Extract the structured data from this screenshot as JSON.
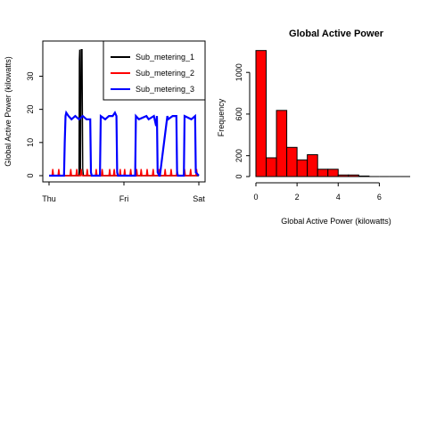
{
  "chart_data": [
    {
      "type": "line",
      "title": "",
      "xlabel": "",
      "ylabel": "Global Active Power (kilowatts)",
      "x_ticks": [
        "Thu",
        "Fri",
        "Sat"
      ],
      "x_range_days": [
        0,
        2
      ],
      "ylim": [
        0,
        39
      ],
      "y_ticks": [
        0,
        10,
        20,
        30
      ],
      "legend": "top-right",
      "series": [
        {
          "name": "Sub_metering_1",
          "color": "#000000",
          "x": [
            0,
            0.4,
            0.405,
            0.41,
            0.415,
            0.42,
            0.43,
            0.44,
            0.45,
            0.46,
            0.47,
            2
          ],
          "y": [
            0,
            0,
            35,
            38,
            2,
            0,
            38,
            38,
            2,
            0,
            0,
            0
          ]
        },
        {
          "name": "Sub_metering_2",
          "color": "#ff0000",
          "x": [
            0.04,
            0.05,
            0.06,
            0.12,
            0.13,
            0.14,
            0.28,
            0.29,
            0.3,
            0.36,
            0.37,
            0.38,
            0.42,
            0.43,
            0.44,
            0.5,
            0.51,
            0.52,
            0.62,
            0.63,
            0.64,
            0.7,
            0.71,
            0.72,
            0.8,
            0.81,
            0.82,
            0.86,
            0.87,
            0.88,
            0.94,
            0.95,
            0.96,
            1.0,
            1.01,
            1.02,
            1.08,
            1.09,
            1.1,
            1.16,
            1.17,
            1.18,
            1.22,
            1.23,
            1.24,
            1.3,
            1.31,
            1.32,
            1.38,
            1.39,
            1.4,
            1.46,
            1.47,
            1.48,
            1.54,
            1.55,
            1.56,
            1.62,
            1.63,
            1.64,
            1.7,
            1.71,
            1.72,
            1.8,
            1.81,
            1.82,
            1.88,
            1.89,
            1.9,
            1.96,
            1.97,
            1.98
          ],
          "y": [
            0,
            2,
            0,
            0,
            2,
            0,
            0,
            2,
            0,
            0,
            2,
            0,
            0,
            2,
            0,
            0,
            2,
            0,
            0,
            2,
            0,
            0,
            2,
            0,
            0,
            2,
            0,
            0,
            2,
            0,
            0,
            2,
            0,
            0,
            2,
            0,
            0,
            2,
            0,
            0,
            2,
            0,
            0,
            2,
            0,
            0,
            2,
            0,
            0,
            2,
            0,
            0,
            2,
            0,
            0,
            2,
            0,
            0,
            2,
            0,
            0,
            2,
            0,
            0,
            2,
            0,
            0,
            2,
            0,
            0,
            2,
            0
          ]
        },
        {
          "name": "Sub_metering_3",
          "color": "#0000ff",
          "x": [
            0,
            0.2,
            0.21,
            0.22,
            0.23,
            0.26,
            0.3,
            0.35,
            0.4,
            0.45,
            0.5,
            0.55,
            0.56,
            0.57,
            0.68,
            0.69,
            0.75,
            0.8,
            0.85,
            0.88,
            0.9,
            0.91,
            0.92,
            1.15,
            1.16,
            1.2,
            1.3,
            1.33,
            1.4,
            1.43,
            1.44,
            1.45,
            1.47,
            1.48,
            1.58,
            1.59,
            1.65,
            1.7,
            1.71,
            1.72,
            1.8,
            1.81,
            1.9,
            1.95,
            1.96,
            2
          ],
          "y": [
            0,
            0,
            10,
            18,
            19,
            18,
            17,
            18,
            17,
            18,
            17,
            17,
            1,
            0,
            0,
            18,
            17,
            18,
            18,
            19,
            18,
            1,
            0,
            0,
            18,
            17,
            18,
            17,
            18,
            15,
            18,
            1,
            0,
            0,
            18,
            17,
            18,
            18,
            1,
            0,
            0,
            18,
            17,
            18,
            1,
            0
          ]
        }
      ]
    },
    {
      "type": "bar",
      "title": "Global Active Power",
      "xlabel": "Global Active Power (kilowatts)",
      "ylabel": "Frequency",
      "bin_edges": [
        0,
        0.5,
        1,
        1.5,
        2,
        2.5,
        3,
        3.5,
        4,
        4.5,
        5,
        5.5,
        6,
        6.5,
        7,
        7.5
      ],
      "values": [
        1210,
        180,
        635,
        280,
        160,
        210,
        70,
        70,
        15,
        15,
        5,
        0,
        0,
        0,
        0
      ],
      "x_ticks": [
        0,
        2,
        4,
        6
      ],
      "y_ticks": [
        0,
        200,
        600,
        1000
      ],
      "ylim": [
        0,
        1250
      ],
      "bar_color": "#ff0000"
    }
  ]
}
